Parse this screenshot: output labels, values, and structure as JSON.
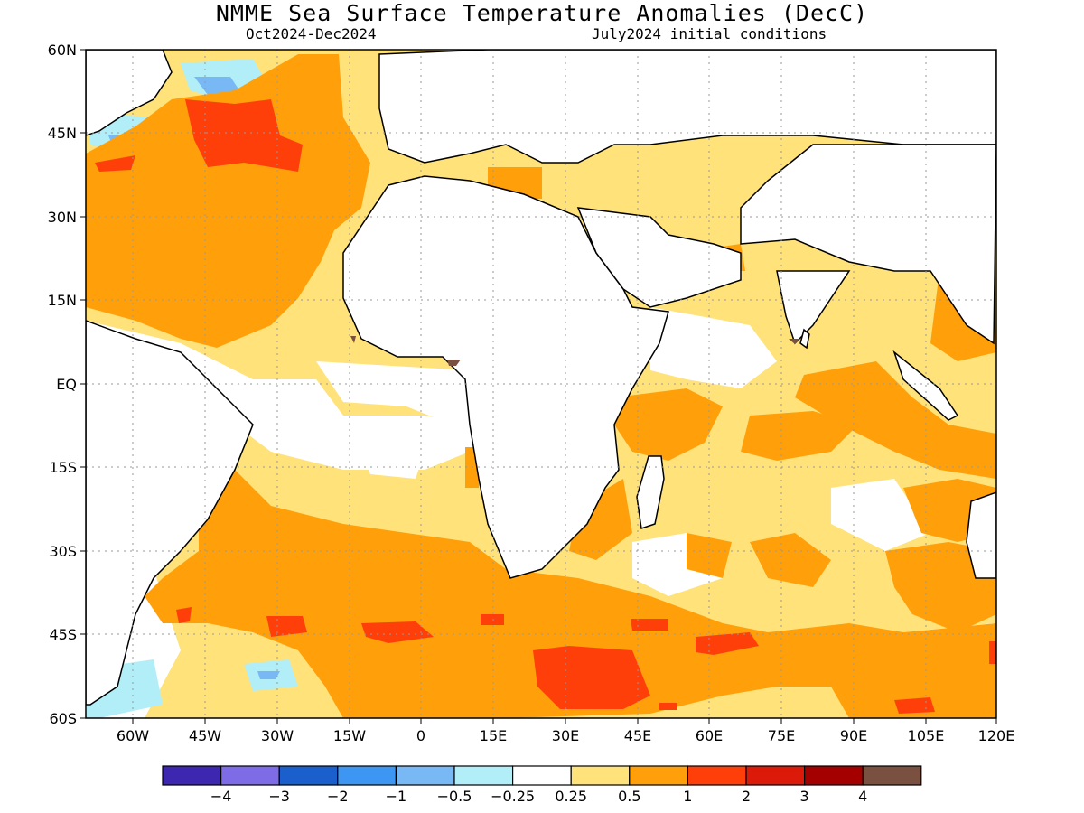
{
  "title": "NMME Sea Surface Temperature Anomalies (DecC)",
  "subtitle_left": "Oct2024-Dec2024",
  "subtitle_right": "July2024 initial conditions",
  "map": {
    "lon_range": [
      -70,
      120
    ],
    "lat_range": [
      -60,
      60
    ],
    "lat_ticks": [
      "60N",
      "45N",
      "30N",
      "15N",
      "EQ",
      "15S",
      "30S",
      "45S",
      "60S"
    ],
    "lon_ticks": [
      "60W",
      "45W",
      "30W",
      "15W",
      "0",
      "15E",
      "30E",
      "45E",
      "60E",
      "75E",
      "90E",
      "105E",
      "120E"
    ],
    "gridlines": true,
    "land_color": "#ffffff",
    "coastline_color": "#000000"
  },
  "colorbar": {
    "labels": [
      "-4",
      "-3",
      "-2",
      "-1",
      "-0.5",
      "-0.25",
      "0.25",
      "0.5",
      "1",
      "2",
      "3",
      "4"
    ],
    "colors": [
      "#3d26b0",
      "#7d6ce6",
      "#1a5fcc",
      "#3d96f2",
      "#78b8f5",
      "#b2eef7",
      "#ffffff",
      "#ffe27a",
      "#ff9f0a",
      "#ff3f0a",
      "#dc1a0a",
      "#a50000",
      "#7a5040"
    ]
  }
}
